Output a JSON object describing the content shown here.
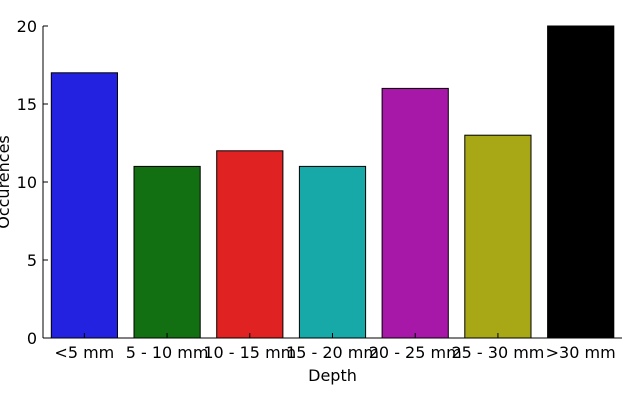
{
  "chart_data": {
    "type": "bar",
    "xlabel": "Depth",
    "ylabel": "Occurences",
    "categories": [
      "<5 mm",
      "5 - 10 mm",
      "10 - 15 mm",
      "15 - 20 mm",
      "20 - 25 mm",
      "25 - 30 mm",
      ">30 mm"
    ],
    "values": [
      17,
      11,
      12,
      11,
      16,
      13,
      20
    ],
    "colors": [
      "#2222e0",
      "#127012",
      "#e02222",
      "#17a8a8",
      "#a818a8",
      "#a8a817",
      "#000000"
    ],
    "ylim": [
      0,
      20
    ],
    "yticks": [
      0,
      5,
      10,
      15,
      20
    ],
    "grid": false,
    "legend": false
  }
}
